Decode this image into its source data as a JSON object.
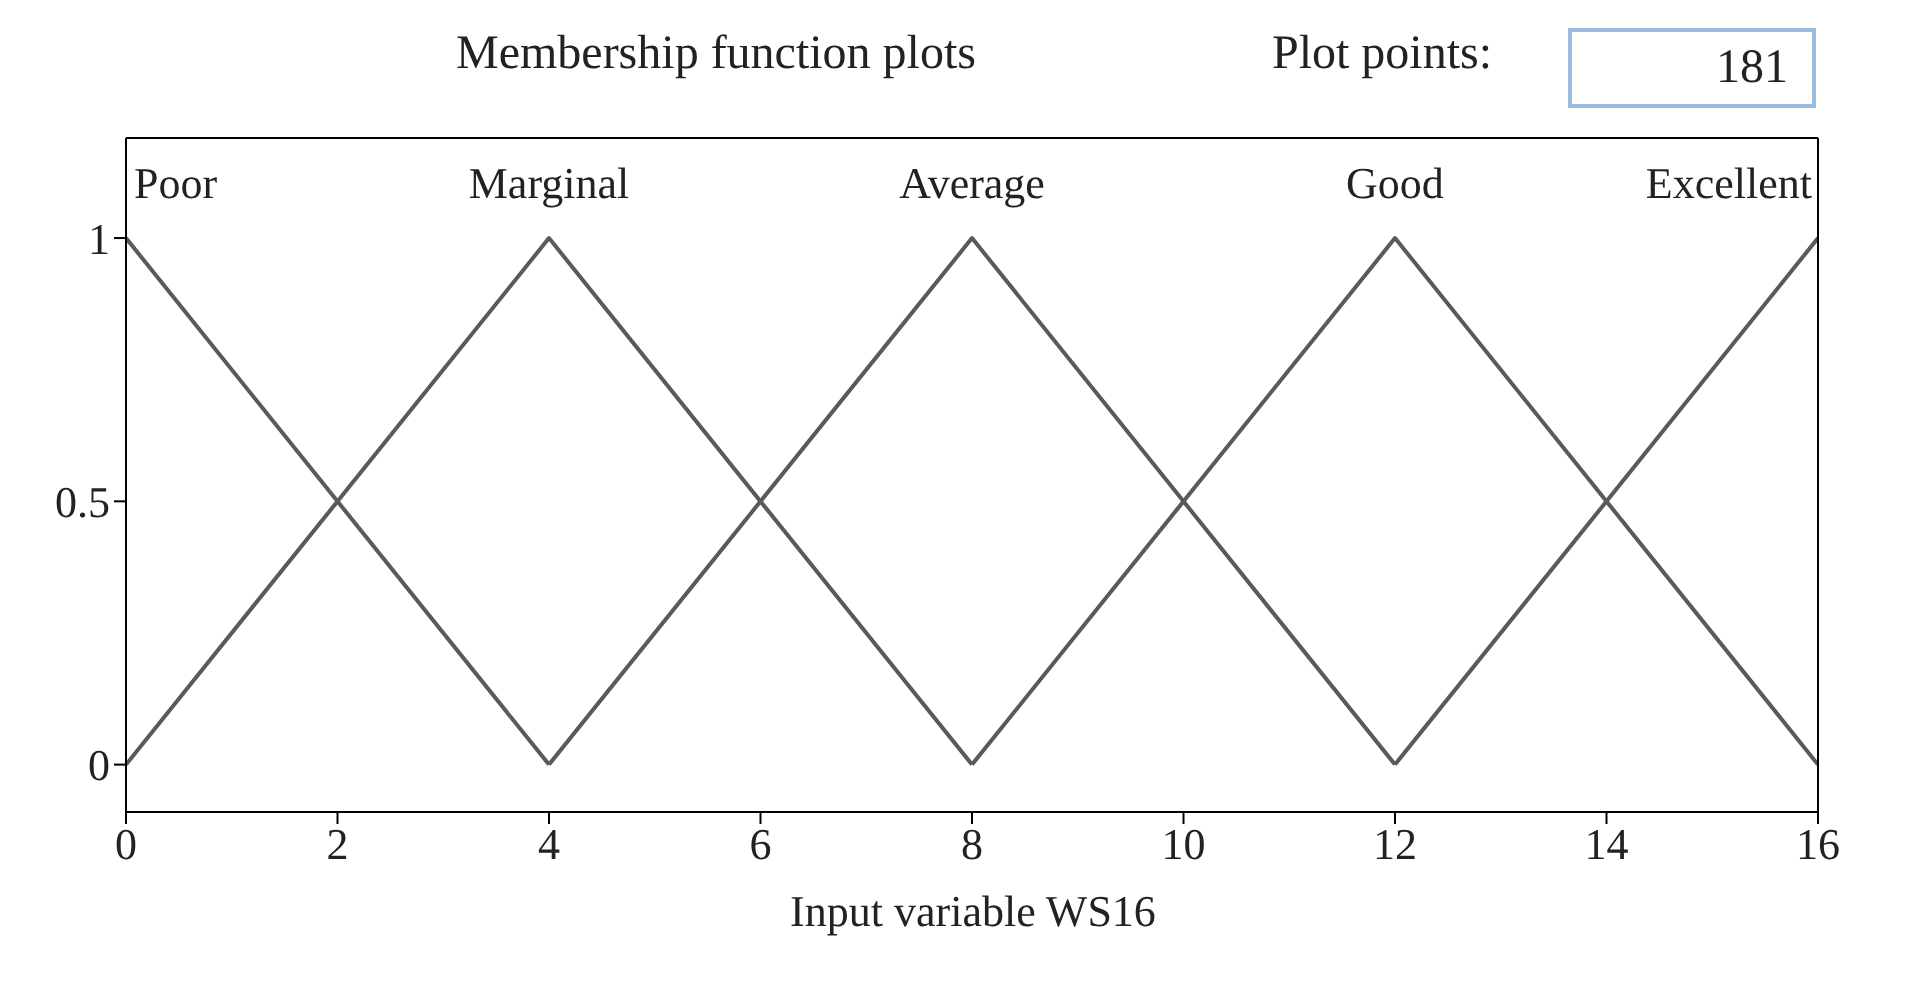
{
  "chart_data": {
    "type": "line",
    "title": "Membership function plots",
    "xlabel": "Input variable WS16",
    "annotations": [
      "Plot points:",
      "181"
    ],
    "xlim": [
      0,
      16
    ],
    "xticks": [
      0,
      2,
      4,
      6,
      8,
      10,
      12,
      14,
      16
    ],
    "ylim": [
      -0.09,
      1.19
    ],
    "yticks": [
      0,
      0.5,
      1
    ],
    "legend": false,
    "marker": "none",
    "line_style": "solid",
    "series": [
      {
        "name": "Poor",
        "color": "#5a5a5a",
        "x": [
          0,
          4
        ],
        "values": [
          1,
          0
        ]
      },
      {
        "name": "Marginal",
        "color": "#5a5a5a",
        "x": [
          0,
          4,
          8
        ],
        "values": [
          0,
          1,
          0
        ]
      },
      {
        "name": "Average",
        "color": "#5a5a5a",
        "x": [
          4,
          8,
          12
        ],
        "values": [
          0,
          1,
          0
        ]
      },
      {
        "name": "Good",
        "color": "#5a5a5a",
        "x": [
          8,
          12,
          16
        ],
        "values": [
          0,
          1,
          0
        ]
      },
      {
        "name": "Excellent",
        "color": "#5a5a5a",
        "x": [
          12,
          16
        ],
        "values": [
          0,
          1
        ]
      }
    ]
  }
}
